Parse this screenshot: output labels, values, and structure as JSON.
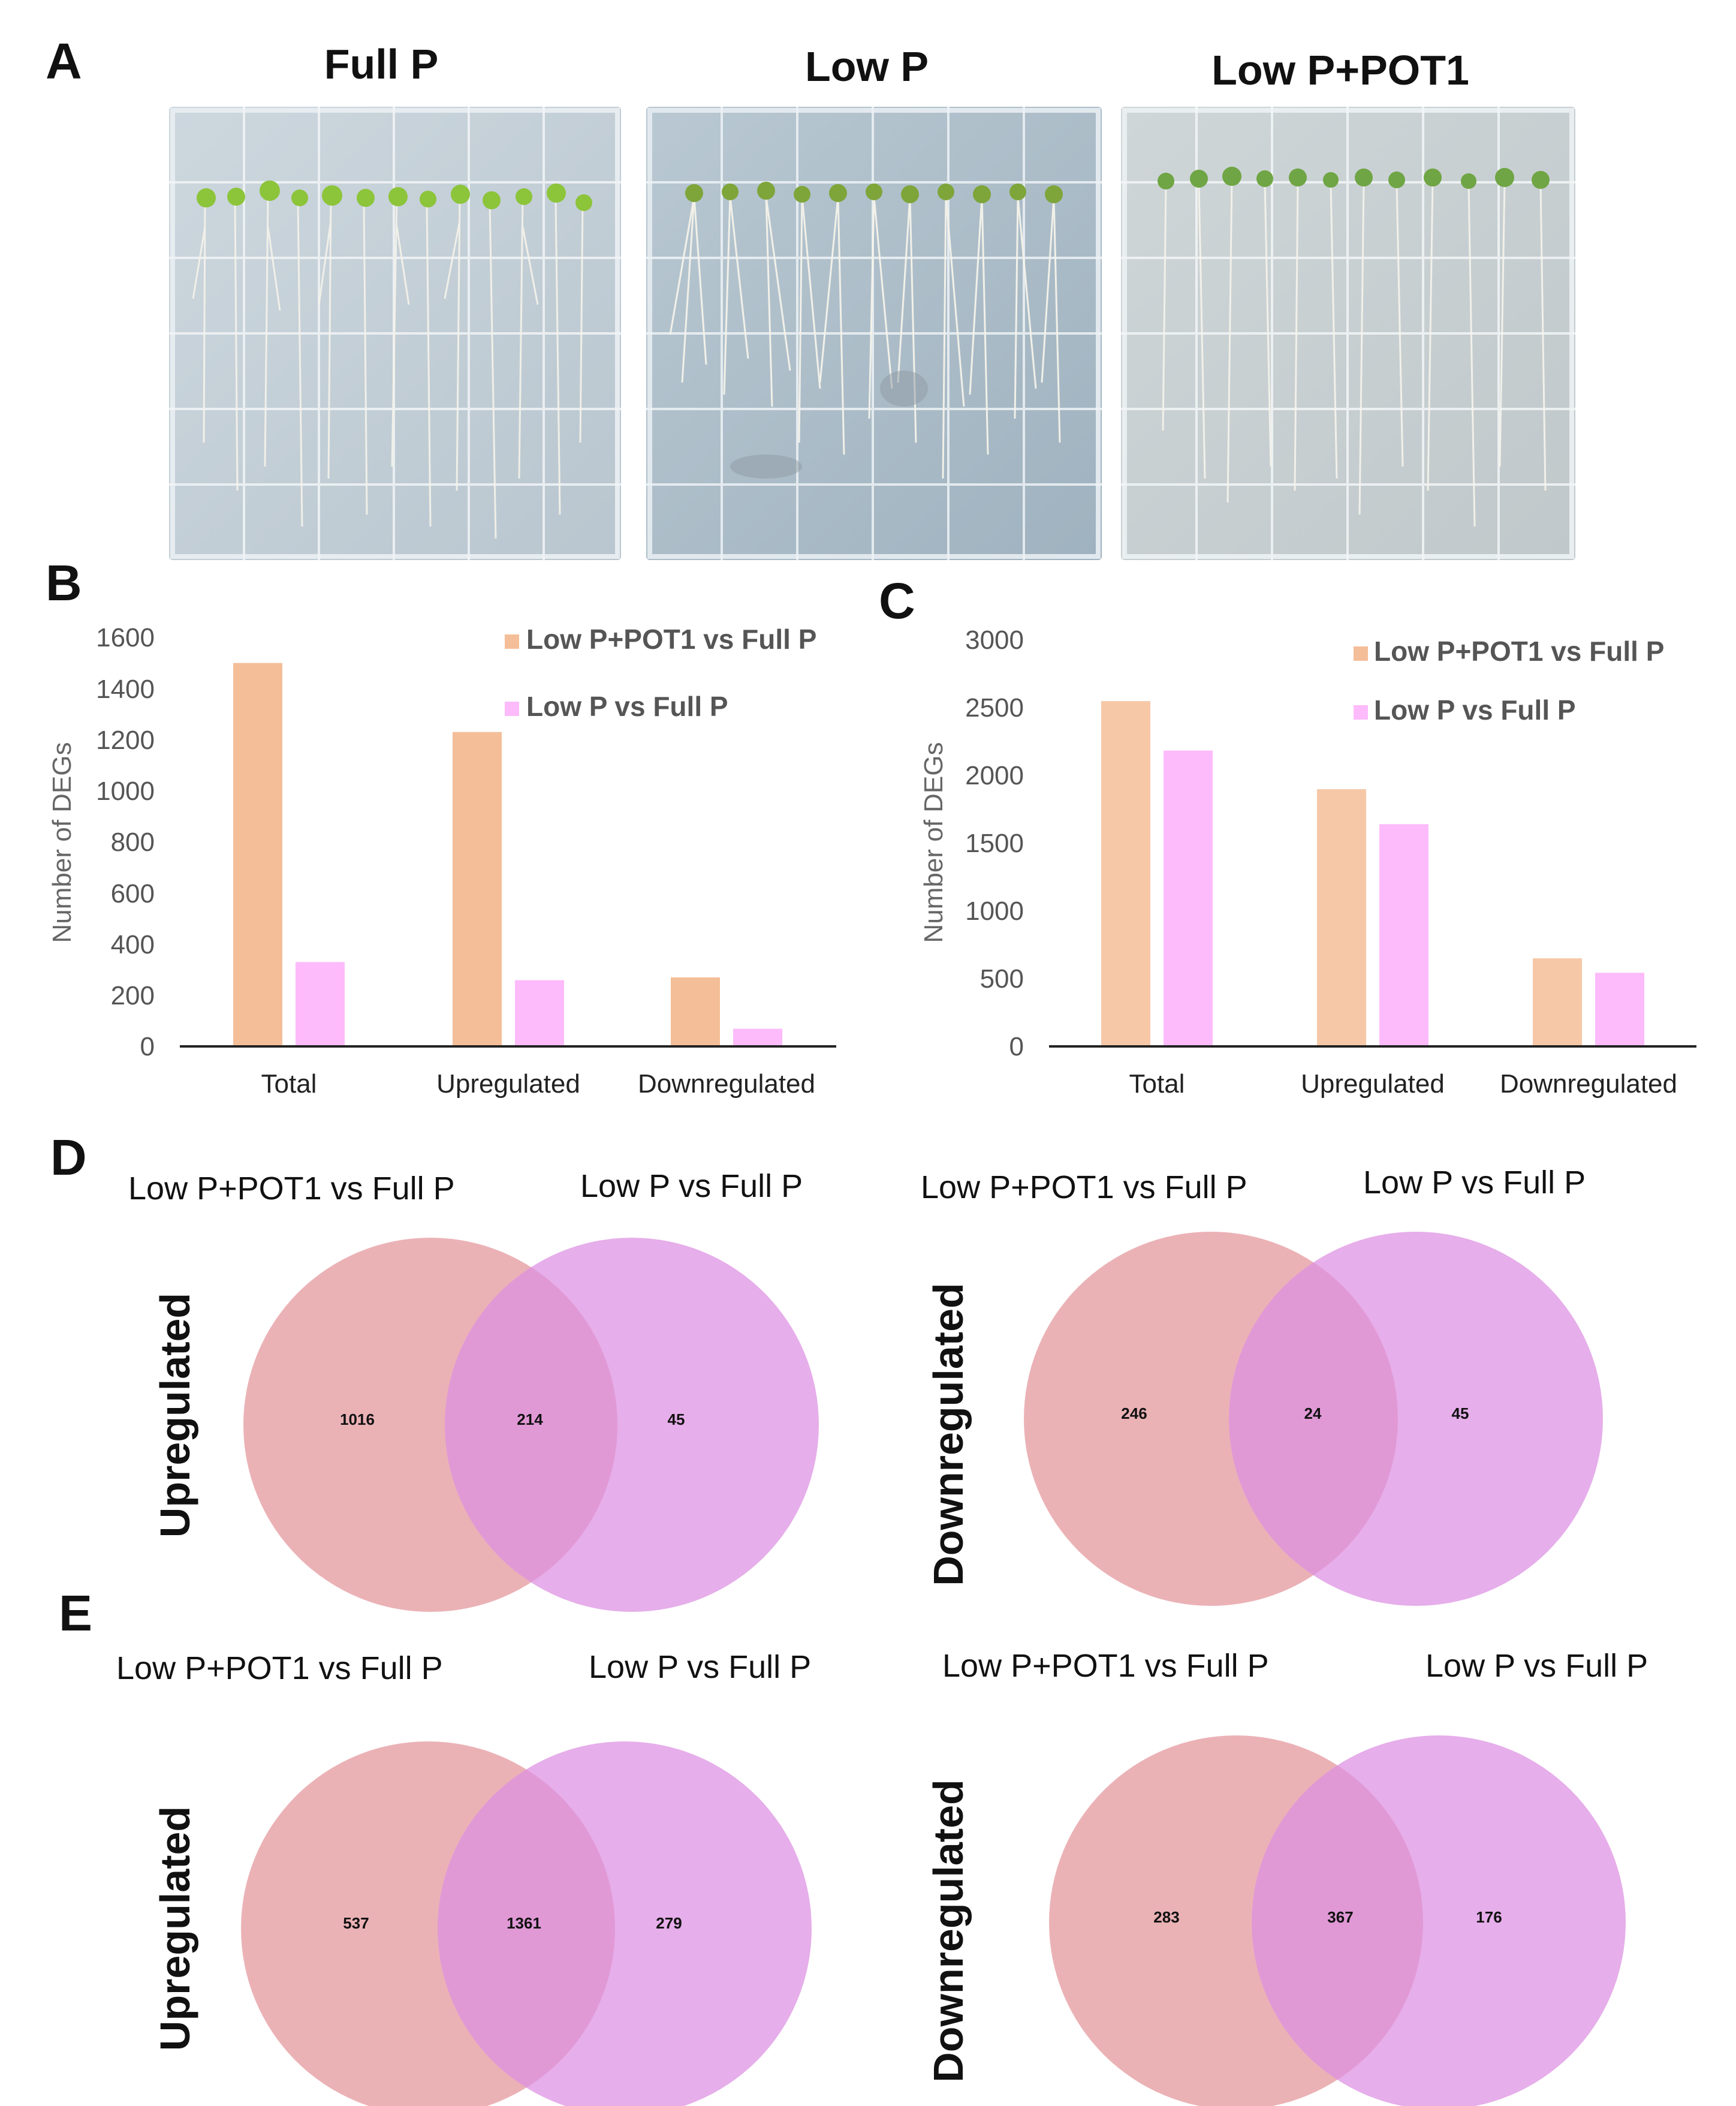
{
  "panels": {
    "a": "A",
    "b": "B",
    "c": "C",
    "d": "D",
    "e": "E"
  },
  "panel_a": {
    "titles": [
      "Full P",
      "Low P",
      "Low P+POT1"
    ],
    "plate_images": [
      "seedlings-full-p-plate",
      "seedlings-low-p-plate",
      "seedlings-low-p-pot1-plate"
    ]
  },
  "colors": {
    "series1": "#F4BE98",
    "series1_b": "#F6C8A8",
    "series2": "#FDBBFB",
    "venn_left": "#E7A1A6",
    "venn_right": "#DC8FE2"
  },
  "chart_data": [
    {
      "id": "B",
      "type": "bar",
      "title": "",
      "xlabel": "",
      "ylabel": "Number of DEGs",
      "categories": [
        "Total",
        "Upregulated",
        "Downregulated"
      ],
      "series": [
        {
          "name": "Low P+POT1 vs Full P",
          "values": [
            1500,
            1230,
            270
          ]
        },
        {
          "name": "Low P vs Full P",
          "values": [
            330,
            259,
            69
          ]
        }
      ],
      "ylim": [
        0,
        1600
      ],
      "yticks": [
        "0",
        "200",
        "400",
        "600",
        "800",
        "1000",
        "1200",
        "1400",
        "1600"
      ],
      "grid": false,
      "legend": "top-right"
    },
    {
      "id": "C",
      "type": "bar",
      "title": "",
      "xlabel": "",
      "ylabel": "Number of DEGs",
      "categories": [
        "Total",
        "Upregulated",
        "Downregulated"
      ],
      "series": [
        {
          "name": "Low P+POT1 vs Full P",
          "values": [
            2548,
            1898,
            650
          ]
        },
        {
          "name": "Low P vs Full P",
          "values": [
            2183,
            1640,
            543
          ]
        }
      ],
      "ylim": [
        0,
        3000
      ],
      "yticks": [
        "0",
        "500",
        "1000",
        "1500",
        "2000",
        "2500",
        "3000"
      ],
      "grid": false,
      "legend": "top-right"
    }
  ],
  "venn": {
    "d_up": {
      "left_title": "Low P+POT1 vs Full P",
      "right_title": "Low P vs Full P",
      "side_label": "Upregulated",
      "left_only": "1016",
      "both": "214",
      "right_only": "45"
    },
    "d_down": {
      "left_title": "Low P+POT1 vs Full P",
      "right_title": "Low P vs Full P",
      "side_label": "Downregulated",
      "left_only": "246",
      "both": "24",
      "right_only": "45"
    },
    "e_up": {
      "left_title": "Low P+POT1 vs Full P",
      "right_title": "Low P vs Full P",
      "side_label": "Upregulated",
      "left_only": "537",
      "both": "1361",
      "right_only": "279"
    },
    "e_down": {
      "left_title": "Low P+POT1 vs Full P",
      "right_title": "Low P vs Full P",
      "side_label": "Downregulated",
      "left_only": "283",
      "both": "367",
      "right_only": "176"
    }
  }
}
